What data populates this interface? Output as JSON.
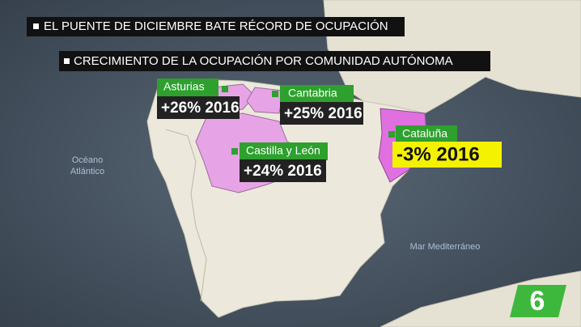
{
  "header": {
    "title": "EL PUENTE DE DICIEMBRE BATE RÉCORD DE OCUPACIÓN",
    "subtitle": "CRECIMIENTO DE LA OCUPACIÓN POR COMUNIDAD AUTÓNOMA"
  },
  "regions": [
    {
      "name": "Asturias",
      "value": "+26% 2016"
    },
    {
      "name": "Cantabria",
      "value": "+25% 2016"
    },
    {
      "name": "Castilla y León",
      "value": "+24% 2016"
    },
    {
      "name": "Cataluña",
      "value": "-3% 2016"
    }
  ],
  "seas": [
    {
      "lines": [
        "Océano",
        "Atlántico"
      ]
    },
    {
      "lines": [
        "Mar Mediterráneo"
      ]
    }
  ],
  "logo": "6"
}
